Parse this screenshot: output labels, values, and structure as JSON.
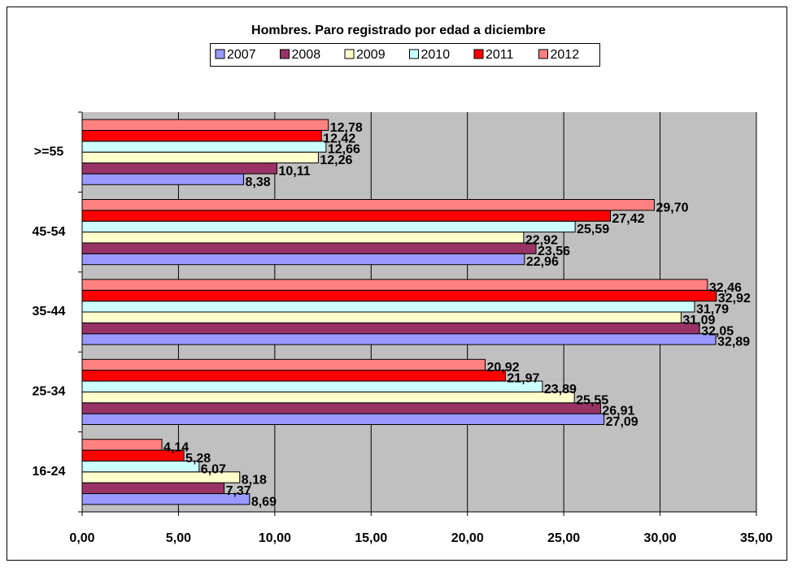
{
  "chart_data": {
    "type": "hbar",
    "title": "Hombres. Paro registrado por edad a diciembre",
    "categories": [
      "16-24",
      "25-34",
      "35-44",
      "45-54",
      ">=55"
    ],
    "series": [
      {
        "name": "2007",
        "color": "#9999ff",
        "values": [
          8.69,
          27.09,
          32.89,
          22.96,
          8.38
        ],
        "value_labels": [
          "8,69",
          "27,09",
          "32,89",
          "22,96",
          "8,38"
        ]
      },
      {
        "name": "2008",
        "color": "#993366",
        "values": [
          7.37,
          26.91,
          32.05,
          23.56,
          10.11
        ],
        "value_labels": [
          "7,37",
          "26,91",
          "32,05",
          "23,56",
          "10,11"
        ]
      },
      {
        "name": "2009",
        "color": "#ffffcc",
        "values": [
          8.18,
          25.55,
          31.09,
          22.92,
          12.26
        ],
        "value_labels": [
          "8,18",
          "25,55",
          "31,09",
          "22,92",
          "12,26"
        ]
      },
      {
        "name": "2010",
        "color": "#ccffff",
        "values": [
          6.07,
          23.89,
          31.79,
          25.59,
          12.66
        ],
        "value_labels": [
          "6,07",
          "23,89",
          "31,79",
          "25,59",
          "12,66"
        ]
      },
      {
        "name": "2011",
        "color": "#ff0000",
        "values": [
          5.28,
          21.97,
          32.92,
          27.42,
          12.42
        ],
        "value_labels": [
          "5,28",
          "21,97",
          "32,92",
          "27,42",
          "12,42"
        ]
      },
      {
        "name": "2012",
        "color": "#ff8080",
        "values": [
          4.14,
          20.92,
          32.46,
          29.7,
          12.78
        ],
        "value_labels": [
          "4,14",
          "20,92",
          "32,46",
          "29,70",
          "12,78"
        ]
      }
    ],
    "xlim": [
      0,
      35
    ],
    "xticks": [
      {
        "value": 0,
        "label": "0,00"
      },
      {
        "value": 5,
        "label": "5,00"
      },
      {
        "value": 10,
        "label": "10,00"
      },
      {
        "value": 15,
        "label": "15,00"
      },
      {
        "value": 20,
        "label": "20,00"
      },
      {
        "value": 25,
        "label": "25,00"
      },
      {
        "value": 30,
        "label": "30,00"
      },
      {
        "value": 35,
        "label": "35,00"
      }
    ],
    "grid": true
  }
}
